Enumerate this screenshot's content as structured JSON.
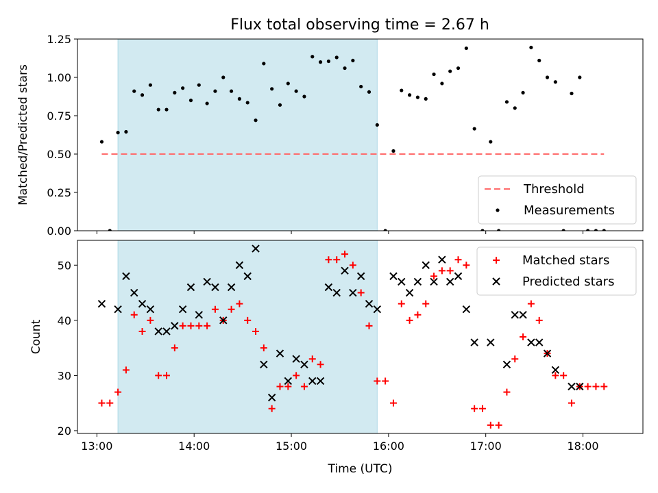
{
  "title": "Flux total observing time = 2.67 h",
  "colors": {
    "shade": "#add8e6",
    "threshold": "#ff6b6b",
    "matched": "#ff0000",
    "predicted": "#000000",
    "measurements": "#000000"
  },
  "chart_data": [
    {
      "type": "scatter",
      "panel": "top",
      "ylabel": "Matched/Predicted stars",
      "ylim": [
        0,
        1.25
      ],
      "yticks": [
        "0.00",
        "0.25",
        "0.50",
        "0.75",
        "1.00",
        "1.25"
      ],
      "shaded_interval": [
        "13:13",
        "15:53"
      ],
      "legend_position": "lower-right",
      "series": [
        {
          "name": "Threshold",
          "style": "dashed-line",
          "points": [
            [
              "13:03",
              0.5
            ],
            [
              "18:13",
              0.5
            ]
          ]
        },
        {
          "name": "Measurements",
          "style": "dot",
          "points": [
            [
              "13:03",
              0.58
            ],
            [
              "13:08",
              0.0
            ],
            [
              "13:13",
              0.64
            ],
            [
              "13:18",
              0.645
            ],
            [
              "13:23",
              0.91
            ],
            [
              "13:28",
              0.885
            ],
            [
              "13:33",
              0.95
            ],
            [
              "13:38",
              0.79
            ],
            [
              "13:43",
              0.79
            ],
            [
              "13:48",
              0.9
            ],
            [
              "13:53",
              0.93
            ],
            [
              "13:58",
              0.85
            ],
            [
              "14:03",
              0.95
            ],
            [
              "14:08",
              0.83
            ],
            [
              "14:13",
              0.91
            ],
            [
              "14:18",
              1.0
            ],
            [
              "14:23",
              0.91
            ],
            [
              "14:28",
              0.86
            ],
            [
              "14:33",
              0.835
            ],
            [
              "14:38",
              0.72
            ],
            [
              "14:43",
              1.09
            ],
            [
              "14:48",
              0.925
            ],
            [
              "14:53",
              0.82
            ],
            [
              "14:58",
              0.96
            ],
            [
              "15:03",
              0.91
            ],
            [
              "15:08",
              0.875
            ],
            [
              "15:13",
              1.135
            ],
            [
              "15:18",
              1.1
            ],
            [
              "15:23",
              1.105
            ],
            [
              "15:28",
              1.13
            ],
            [
              "15:33",
              1.06
            ],
            [
              "15:38",
              1.11
            ],
            [
              "15:43",
              0.94
            ],
            [
              "15:48",
              0.905
            ],
            [
              "15:53",
              0.69
            ],
            [
              "15:58",
              0.0
            ],
            [
              "16:03",
              0.52
            ],
            [
              "16:08",
              0.915
            ],
            [
              "16:13",
              0.885
            ],
            [
              "16:18",
              0.87
            ],
            [
              "16:23",
              0.86
            ],
            [
              "16:28",
              1.02
            ],
            [
              "16:33",
              0.96
            ],
            [
              "16:38",
              1.04
            ],
            [
              "16:43",
              1.06
            ],
            [
              "16:48",
              1.19
            ],
            [
              "16:53",
              0.665
            ],
            [
              "16:58",
              0.0
            ],
            [
              "17:03",
              0.58
            ],
            [
              "17:08",
              0.0
            ],
            [
              "17:13",
              0.84
            ],
            [
              "17:18",
              0.8
            ],
            [
              "17:23",
              0.9
            ],
            [
              "17:28",
              1.195
            ],
            [
              "17:33",
              1.11
            ],
            [
              "17:38",
              1.0
            ],
            [
              "17:43",
              0.97
            ],
            [
              "17:48",
              0.0
            ],
            [
              "17:53",
              0.895
            ],
            [
              "17:58",
              1.0
            ],
            [
              "18:03",
              0.0
            ],
            [
              "18:08",
              0.0
            ],
            [
              "18:13",
              0.0
            ]
          ]
        }
      ]
    },
    {
      "type": "scatter",
      "panel": "bottom",
      "xlabel": "Time (UTC)",
      "ylabel": "Count",
      "ylim": [
        19.5,
        54.5
      ],
      "yticks": [
        "20",
        "30",
        "40",
        "50"
      ],
      "xlim": [
        "12:48",
        "18:37"
      ],
      "xticks": [
        "13:00",
        "14:00",
        "15:00",
        "16:00",
        "17:00",
        "18:00"
      ],
      "shaded_interval": [
        "13:13",
        "15:53"
      ],
      "legend_position": "upper-right",
      "series": [
        {
          "name": "Matched stars",
          "style": "plus",
          "points": [
            [
              "13:03",
              25
            ],
            [
              "13:08",
              25
            ],
            [
              "13:13",
              27
            ],
            [
              "13:18",
              31
            ],
            [
              "13:23",
              41
            ],
            [
              "13:28",
              38
            ],
            [
              "13:33",
              40
            ],
            [
              "13:38",
              30
            ],
            [
              "13:43",
              30
            ],
            [
              "13:48",
              35
            ],
            [
              "13:53",
              39
            ],
            [
              "13:58",
              39
            ],
            [
              "14:03",
              39
            ],
            [
              "14:08",
              39
            ],
            [
              "14:13",
              42
            ],
            [
              "14:18",
              40
            ],
            [
              "14:23",
              42
            ],
            [
              "14:28",
              43
            ],
            [
              "14:33",
              40
            ],
            [
              "14:38",
              38
            ],
            [
              "14:43",
              35
            ],
            [
              "14:48",
              24
            ],
            [
              "14:53",
              28
            ],
            [
              "14:58",
              28
            ],
            [
              "15:03",
              30
            ],
            [
              "15:08",
              28
            ],
            [
              "15:13",
              33
            ],
            [
              "15:18",
              32
            ],
            [
              "15:23",
              51
            ],
            [
              "15:28",
              51
            ],
            [
              "15:33",
              52
            ],
            [
              "15:38",
              50
            ],
            [
              "15:43",
              45
            ],
            [
              "15:48",
              39
            ],
            [
              "15:53",
              29
            ],
            [
              "15:58",
              29
            ],
            [
              "16:03",
              25
            ],
            [
              "16:08",
              43
            ],
            [
              "16:13",
              40
            ],
            [
              "16:18",
              41
            ],
            [
              "16:23",
              43
            ],
            [
              "16:28",
              48
            ],
            [
              "16:33",
              49
            ],
            [
              "16:38",
              49
            ],
            [
              "16:43",
              51
            ],
            [
              "16:48",
              50
            ],
            [
              "16:53",
              24
            ],
            [
              "16:58",
              24
            ],
            [
              "17:03",
              21
            ],
            [
              "17:08",
              21
            ],
            [
              "17:13",
              27
            ],
            [
              "17:18",
              33
            ],
            [
              "17:23",
              37
            ],
            [
              "17:28",
              43
            ],
            [
              "17:33",
              40
            ],
            [
              "17:38",
              34
            ],
            [
              "17:43",
              30
            ],
            [
              "17:48",
              30
            ],
            [
              "17:53",
              25
            ],
            [
              "17:58",
              28
            ],
            [
              "18:03",
              28
            ],
            [
              "18:08",
              28
            ],
            [
              "18:13",
              28
            ]
          ]
        },
        {
          "name": "Predicted stars",
          "style": "x",
          "points": [
            [
              "13:03",
              43
            ],
            [
              "13:13",
              42
            ],
            [
              "13:18",
              48
            ],
            [
              "13:23",
              45
            ],
            [
              "13:28",
              43
            ],
            [
              "13:33",
              42
            ],
            [
              "13:38",
              38
            ],
            [
              "13:43",
              38
            ],
            [
              "13:48",
              39
            ],
            [
              "13:53",
              42
            ],
            [
              "13:58",
              46
            ],
            [
              "14:03",
              41
            ],
            [
              "14:08",
              47
            ],
            [
              "14:13",
              46
            ],
            [
              "14:18",
              40
            ],
            [
              "14:23",
              46
            ],
            [
              "14:28",
              50
            ],
            [
              "14:33",
              48
            ],
            [
              "14:38",
              53
            ],
            [
              "14:43",
              32
            ],
            [
              "14:48",
              26
            ],
            [
              "14:53",
              34
            ],
            [
              "14:58",
              29
            ],
            [
              "15:03",
              33
            ],
            [
              "15:08",
              32
            ],
            [
              "15:13",
              29
            ],
            [
              "15:18",
              29
            ],
            [
              "15:23",
              46
            ],
            [
              "15:28",
              45
            ],
            [
              "15:33",
              49
            ],
            [
              "15:38",
              45
            ],
            [
              "15:43",
              48
            ],
            [
              "15:48",
              43
            ],
            [
              "15:53",
              42
            ],
            [
              "16:03",
              48
            ],
            [
              "16:08",
              47
            ],
            [
              "16:13",
              45
            ],
            [
              "16:18",
              47
            ],
            [
              "16:23",
              50
            ],
            [
              "16:28",
              47
            ],
            [
              "16:33",
              51
            ],
            [
              "16:38",
              47
            ],
            [
              "16:43",
              48
            ],
            [
              "16:48",
              42
            ],
            [
              "16:53",
              36
            ],
            [
              "17:03",
              36
            ],
            [
              "17:13",
              32
            ],
            [
              "17:18",
              41
            ],
            [
              "17:23",
              41
            ],
            [
              "17:28",
              36
            ],
            [
              "17:33",
              36
            ],
            [
              "17:38",
              34
            ],
            [
              "17:43",
              31
            ],
            [
              "17:53",
              28
            ],
            [
              "17:58",
              28
            ]
          ]
        }
      ]
    }
  ]
}
